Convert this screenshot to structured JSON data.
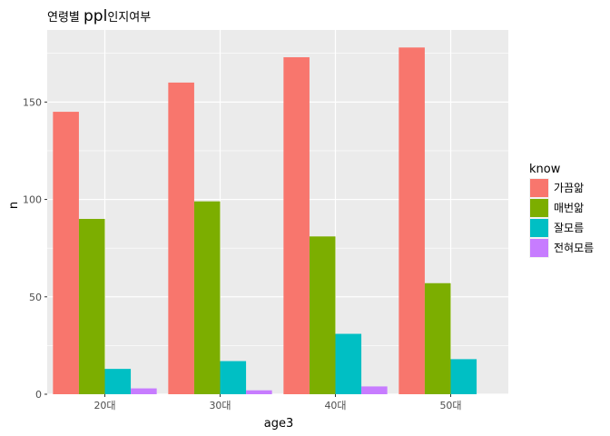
{
  "chart_data": {
    "type": "bar",
    "title_parts": [
      "연령별 ",
      "ppl",
      "인지여부"
    ],
    "xlabel": "age3",
    "ylabel": "n",
    "categories": [
      "20대",
      "30대",
      "40대",
      "50대"
    ],
    "ylim": [
      0,
      187
    ],
    "yticks": [
      0,
      50,
      100,
      150
    ],
    "grid": true,
    "legend_title": "know",
    "legend_position": "right",
    "series": [
      {
        "name": "가끔앎",
        "color": "#F8766D",
        "values": [
          145,
          160,
          173,
          178
        ]
      },
      {
        "name": "매번앎",
        "color": "#7CAE00",
        "values": [
          90,
          99,
          81,
          57
        ]
      },
      {
        "name": "잘모름",
        "color": "#00BFC4",
        "values": [
          13,
          17,
          31,
          18
        ]
      },
      {
        "name": "전혀모름",
        "color": "#C77CFF",
        "values": [
          3,
          2,
          4,
          null
        ]
      }
    ]
  }
}
